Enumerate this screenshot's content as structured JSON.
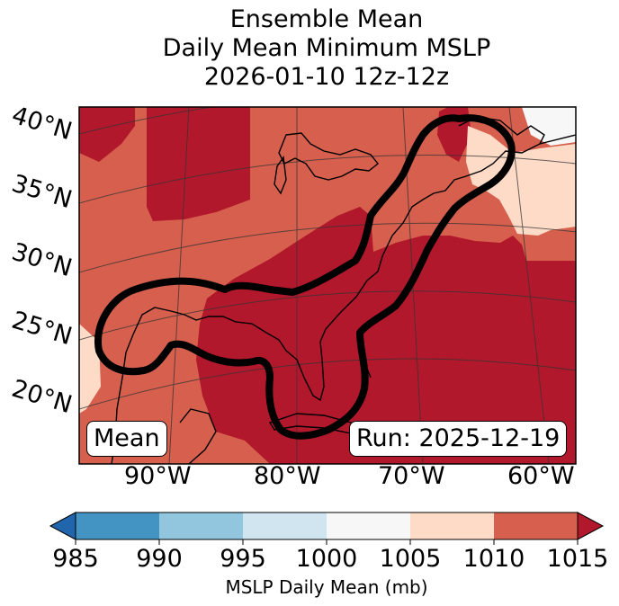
{
  "title": {
    "line1": "Ensemble Mean",
    "line2": "Daily Mean Minimum MSLP",
    "line3": "2026-01-10 12z-12z"
  },
  "map": {
    "lat_labels": [
      "40°N",
      "35°N",
      "30°N",
      "25°N",
      "20°N"
    ],
    "lon_labels": [
      "90°W",
      "80°W",
      "70°W",
      "60°W"
    ],
    "mean_box": "Mean",
    "run_box": "Run: 2025-12-19"
  },
  "colorbar": {
    "ticks": [
      "985",
      "990",
      "995",
      "1000",
      "1005",
      "1010",
      "1015"
    ],
    "label": "MSLP Daily Mean (mb)",
    "colors": {
      "lt985": "#2166ac",
      "b985_990": "#4393c3",
      "b990_995": "#92c5de",
      "b995_1000": "#d1e5f0",
      "b1000_1005": "#f7f7f7",
      "b1005_1010": "#fddbc7",
      "b1010_1015": "#d6604d",
      "gt1015": "#b2182b"
    }
  }
}
